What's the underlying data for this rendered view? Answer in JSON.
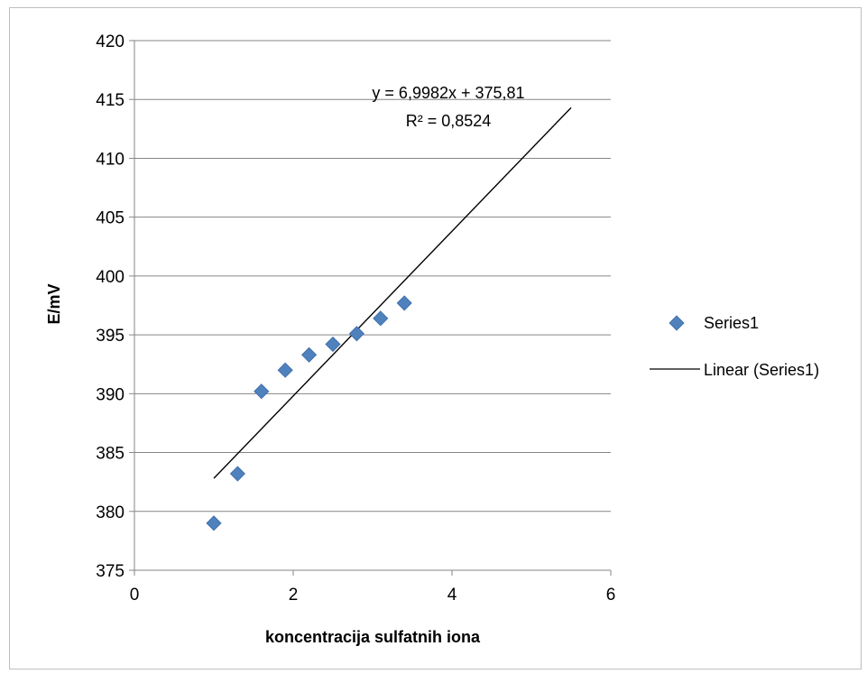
{
  "chart_data": {
    "type": "scatter",
    "xlabel": "koncentracija sulfatnih iona",
    "ylabel": "E/mV",
    "xlim": [
      0,
      6
    ],
    "ylim": [
      375,
      420
    ],
    "x_ticks": [
      "0",
      "2",
      "4",
      "6"
    ],
    "y_ticks": [
      "375",
      "380",
      "385",
      "390",
      "395",
      "400",
      "405",
      "410",
      "415",
      "420"
    ],
    "grid": "horizontal major gridlines",
    "legend_position": "right",
    "series": [
      {
        "name": "Series1",
        "marker": "diamond",
        "color": "#4f81bd",
        "x": [
          1.0,
          1.3,
          1.6,
          1.9,
          2.2,
          2.5,
          2.8,
          3.1,
          3.4
        ],
        "y": [
          379.0,
          383.2,
          390.2,
          392.0,
          393.3,
          394.2,
          395.1,
          396.4,
          397.7
        ]
      }
    ],
    "trendline": {
      "name": "Linear (Series1)",
      "slope": 6.9982,
      "intercept": 375.81,
      "x_start": 1.0,
      "x_end": 5.5,
      "color": "#000000",
      "equation": "y = 6,9982x + 375,81",
      "r_squared": "R² = 0,8524"
    }
  }
}
